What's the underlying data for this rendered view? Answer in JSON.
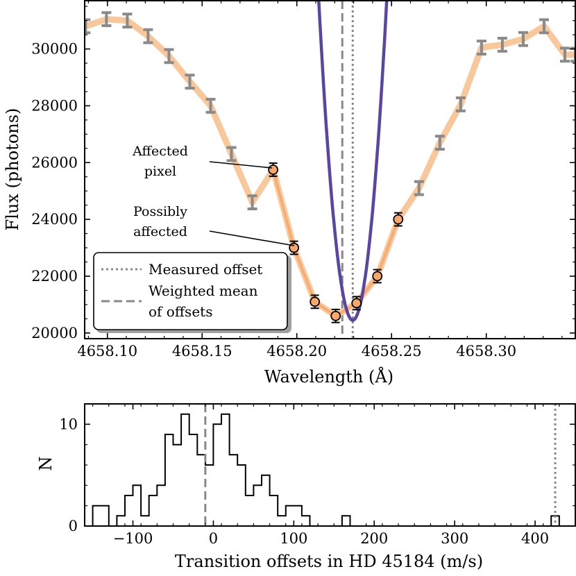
{
  "chart_data": [
    {
      "type": "line",
      "xlabel": "Wavelength (Å)",
      "ylabel": "Flux (photons)",
      "xlim": [
        4658.088,
        4658.347
      ],
      "ylim": [
        19800,
        31700
      ],
      "xticks": [
        4658.1,
        4658.15,
        4658.2,
        4658.25,
        4658.3
      ],
      "xtick_labels": [
        "4658.10",
        "4658.15",
        "4658.20",
        "4658.25",
        "4658.30"
      ],
      "yticks": [
        20000,
        22000,
        24000,
        26000,
        28000,
        30000
      ],
      "ytick_labels": [
        "20000",
        "22000",
        "24000",
        "26000",
        "28000",
        "30000"
      ],
      "spectrum": {
        "x": [
          4658.0885,
          4658.0995,
          4658.1105,
          4658.1215,
          4658.1325,
          4658.1435,
          4658.1545,
          4658.1655,
          4658.1765,
          4658.1875,
          4658.1985,
          4658.2095,
          4658.2205,
          4658.2315,
          4658.2425,
          4658.2535,
          4658.2645,
          4658.2755,
          4658.2865,
          4658.2975,
          4658.3085,
          4658.3195,
          4658.3305,
          4658.3415,
          4658.347
        ],
        "y": [
          30800,
          31050,
          31000,
          30450,
          29750,
          28850,
          28000,
          26300,
          24600,
          25750,
          23000,
          21100,
          20600,
          21050,
          22000,
          24000,
          25100,
          26700,
          28050,
          30050,
          30150,
          30350,
          30800,
          29800,
          29800
        ],
        "err": [
          230,
          230,
          230,
          230,
          230,
          230,
          230,
          230,
          230,
          230,
          230,
          230,
          230,
          230,
          230,
          230,
          230,
          230,
          230,
          230,
          230,
          230,
          230,
          230,
          230
        ],
        "highlight_start": 9,
        "highlight_end": 15
      },
      "model_fit": {
        "center": 4658.2295,
        "minimum": 20450,
        "curvature": 35000000.0
      },
      "measured_offset": 4658.2295,
      "weighted_mean_offset": 4658.224,
      "annotations": [
        {
          "lines": [
            "Affected",
            "pixel"
          ]
        },
        {
          "lines": [
            "Possibly",
            "affected"
          ]
        }
      ],
      "legend": {
        "placement": "lower-left",
        "entries": [
          {
            "label_lines": [
              "Measured offset"
            ],
            "style": "dotted"
          },
          {
            "label_lines": [
              "Weighted mean",
              "of offsets"
            ],
            "style": "dashed"
          }
        ]
      },
      "colors": {
        "spectrum": "#f8c79a",
        "fit": "#5a45a0",
        "point_fill": "#f7a86a",
        "errorbar": "#8a8a8a",
        "vline": "#888888"
      }
    },
    {
      "type": "histogram",
      "xlabel": "Transition offsets in HD 45184 (m/s)",
      "ylabel": "N",
      "xlim": [
        -160,
        450
      ],
      "ylim": [
        0,
        12
      ],
      "xticks": [
        -100,
        0,
        100,
        200,
        300,
        400
      ],
      "xtick_labels": [
        "−100",
        "0",
        "100",
        "200",
        "300",
        "400"
      ],
      "yticks": [
        0,
        10
      ],
      "ytick_labels": [
        "0",
        "10"
      ],
      "bin_edges": [
        -150,
        -140,
        -130,
        -120,
        -110,
        -100,
        -90,
        -80,
        -70,
        -60,
        -50,
        -40,
        -30,
        -20,
        -10,
        0,
        10,
        20,
        30,
        40,
        50,
        60,
        70,
        80,
        90,
        100,
        110,
        120,
        130,
        140,
        150,
        160,
        170,
        180
      ],
      "counts": [
        2,
        2,
        0,
        1,
        3,
        4,
        1,
        3,
        4,
        9,
        8,
        11,
        9,
        7,
        6,
        10,
        11,
        7,
        6,
        3,
        4,
        5,
        3,
        1,
        2,
        2,
        1,
        0,
        0,
        0,
        0,
        1,
        0
      ],
      "measured_offset": 425,
      "weighted_mean_offset": -10
    }
  ]
}
